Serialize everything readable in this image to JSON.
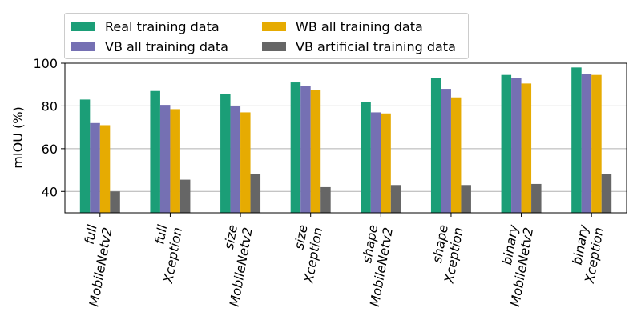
{
  "chart_data": {
    "type": "bar",
    "ylabel": "mIOU (%)",
    "ylim": [
      30,
      100
    ],
    "yticks": [
      40,
      60,
      80,
      100
    ],
    "grid": "y",
    "legend_position": "top",
    "categories": [
      [
        "full",
        "MobileNetv2"
      ],
      [
        "full",
        "Xception"
      ],
      [
        "size",
        "MobileNetv2"
      ],
      [
        "size",
        "Xception"
      ],
      [
        "shape",
        "MobileNetv2"
      ],
      [
        "shape",
        "Xception"
      ],
      [
        "binary",
        "MobileNetv2"
      ],
      [
        "binary",
        "Xception"
      ]
    ],
    "series": [
      {
        "name": "Real training data",
        "color": "#1b9e77",
        "values": [
          83,
          87,
          85.5,
          91,
          82,
          93,
          94.5,
          98
        ]
      },
      {
        "name": "VB all training data",
        "color": "#7570b3",
        "values": [
          72,
          80.5,
          80,
          89.5,
          77,
          88,
          93,
          95
        ]
      },
      {
        "name": "WB all training data",
        "color": "#e6ab02",
        "values": [
          71,
          78.5,
          77,
          87.5,
          76.5,
          84,
          90.5,
          94.5
        ]
      },
      {
        "name": "VB artificial training data",
        "color": "#666666",
        "values": [
          40,
          45.5,
          48,
          42,
          43,
          43,
          43.5,
          48
        ]
      }
    ]
  }
}
